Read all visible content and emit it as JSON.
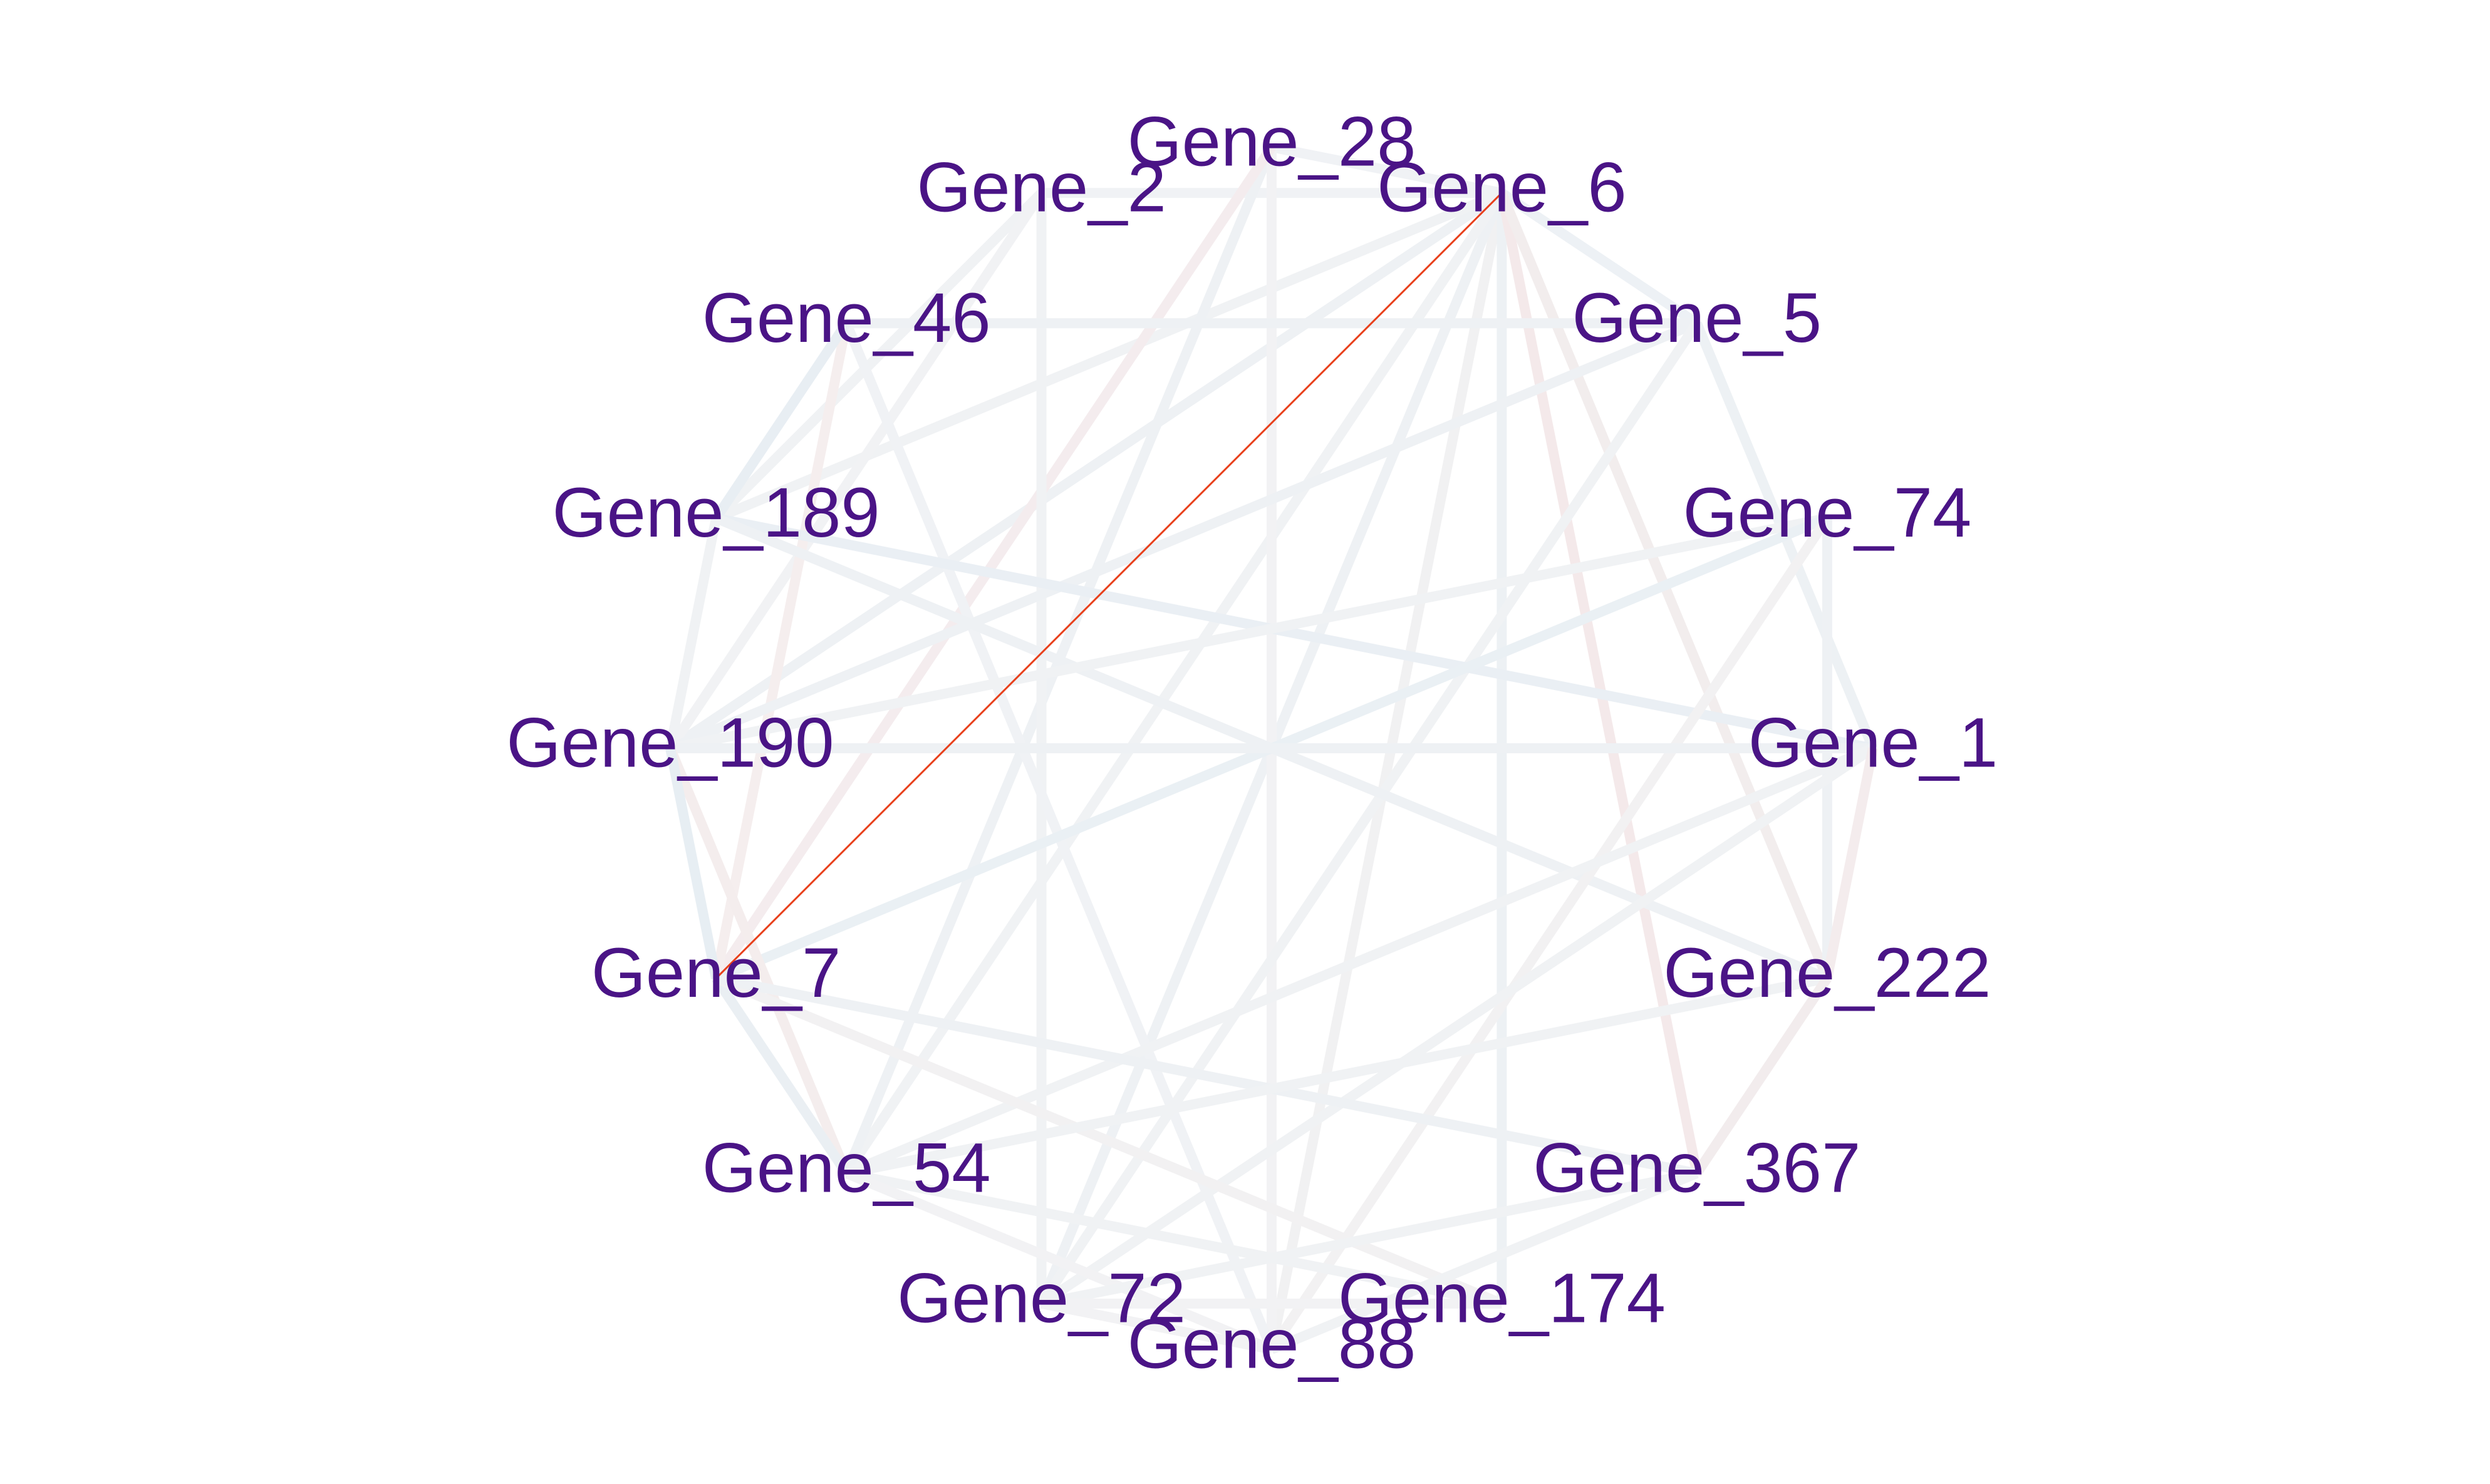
{
  "network": {
    "nodes": [
      {
        "id": "Gene_28",
        "label": "Gene_28"
      },
      {
        "id": "Gene_6",
        "label": "Gene_6"
      },
      {
        "id": "Gene_5",
        "label": "Gene_5"
      },
      {
        "id": "Gene_74",
        "label": "Gene_74"
      },
      {
        "id": "Gene_1",
        "label": "Gene_1"
      },
      {
        "id": "Gene_222",
        "label": "Gene_222"
      },
      {
        "id": "Gene_367",
        "label": "Gene_367"
      },
      {
        "id": "Gene_174",
        "label": "Gene_174"
      },
      {
        "id": "Gene_88",
        "label": "Gene_88"
      },
      {
        "id": "Gene_72",
        "label": "Gene_72"
      },
      {
        "id": "Gene_54",
        "label": "Gene_54"
      },
      {
        "id": "Gene_7",
        "label": "Gene_7"
      },
      {
        "id": "Gene_190",
        "label": "Gene_190"
      },
      {
        "id": "Gene_189",
        "label": "Gene_189"
      },
      {
        "id": "Gene_46",
        "label": "Gene_46"
      },
      {
        "id": "Gene_2",
        "label": "Gene_2"
      }
    ],
    "edges": [
      {
        "source": "Gene_6",
        "target": "Gene_7",
        "color": "#e8401c",
        "emphasis": "strong"
      },
      {
        "source": "Gene_6",
        "target": "Gene_28",
        "color": "#f0f2f5"
      },
      {
        "source": "Gene_6",
        "target": "Gene_2",
        "color": "#f0f2f5"
      },
      {
        "source": "Gene_6",
        "target": "Gene_5",
        "color": "#edf1f5"
      },
      {
        "source": "Gene_6",
        "target": "Gene_88",
        "color": "#f1f1f2"
      },
      {
        "source": "Gene_6",
        "target": "Gene_174",
        "color": "#edf1f4"
      },
      {
        "source": "Gene_6",
        "target": "Gene_72",
        "color": "#eef1f4"
      },
      {
        "source": "Gene_6",
        "target": "Gene_54",
        "color": "#f0f2f4"
      },
      {
        "source": "Gene_6",
        "target": "Gene_190",
        "color": "#eef1f4"
      },
      {
        "source": "Gene_6",
        "target": "Gene_367",
        "color": "#f4e9ea"
      },
      {
        "source": "Gene_6",
        "target": "Gene_222",
        "color": "#f2eded"
      },
      {
        "source": "Gene_6",
        "target": "Gene_189",
        "color": "#f0f2f4"
      },
      {
        "source": "Gene_28",
        "target": "Gene_54",
        "color": "#eef1f4"
      },
      {
        "source": "Gene_28",
        "target": "Gene_88",
        "color": "#f2f2f4"
      },
      {
        "source": "Gene_28",
        "target": "Gene_7",
        "color": "#f4ecee"
      },
      {
        "source": "Gene_2",
        "target": "Gene_72",
        "color": "#f0f2f4"
      },
      {
        "source": "Gene_2",
        "target": "Gene_189",
        "color": "#f0f2f4"
      },
      {
        "source": "Gene_2",
        "target": "Gene_190",
        "color": "#f1f2f4"
      },
      {
        "source": "Gene_46",
        "target": "Gene_7",
        "color": "#f5eeee"
      },
      {
        "source": "Gene_46",
        "target": "Gene_88",
        "color": "#f0f2f5"
      },
      {
        "source": "Gene_46",
        "target": "Gene_5",
        "color": "#eef1f4"
      },
      {
        "source": "Gene_46",
        "target": "Gene_189",
        "color": "#e8eef3"
      },
      {
        "source": "Gene_5",
        "target": "Gene_190",
        "color": "#eef1f4"
      },
      {
        "source": "Gene_5",
        "target": "Gene_72",
        "color": "#f0f2f4"
      },
      {
        "source": "Gene_5",
        "target": "Gene_1",
        "color": "#edf1f4"
      },
      {
        "source": "Gene_189",
        "target": "Gene_1",
        "color": "#eaeff4"
      },
      {
        "source": "Gene_189",
        "target": "Gene_222",
        "color": "#eef1f4"
      },
      {
        "source": "Gene_189",
        "target": "Gene_190",
        "color": "#f0f2f4"
      },
      {
        "source": "Gene_74",
        "target": "Gene_190",
        "color": "#f0f2f4"
      },
      {
        "source": "Gene_74",
        "target": "Gene_7",
        "color": "#eaf0f4"
      },
      {
        "source": "Gene_74",
        "target": "Gene_88",
        "color": "#f2f1f2"
      },
      {
        "source": "Gene_74",
        "target": "Gene_222",
        "color": "#eef1f4"
      },
      {
        "source": "Gene_190",
        "target": "Gene_1",
        "color": "#eef1f4"
      },
      {
        "source": "Gene_190",
        "target": "Gene_54",
        "color": "#f4eded"
      },
      {
        "source": "Gene_190",
        "target": "Gene_7",
        "color": "#e7eef3"
      },
      {
        "source": "Gene_1",
        "target": "Gene_54",
        "color": "#f0f2f4"
      },
      {
        "source": "Gene_1",
        "target": "Gene_72",
        "color": "#f0f2f4"
      },
      {
        "source": "Gene_1",
        "target": "Gene_222",
        "color": "#f4eced"
      },
      {
        "source": "Gene_7",
        "target": "Gene_54",
        "color": "#eaeff3"
      },
      {
        "source": "Gene_7",
        "target": "Gene_174",
        "color": "#f2f1f2"
      },
      {
        "source": "Gene_7",
        "target": "Gene_367",
        "color": "#eef1f4"
      },
      {
        "source": "Gene_222",
        "target": "Gene_54",
        "color": "#f0f2f4"
      },
      {
        "source": "Gene_222",
        "target": "Gene_367",
        "color": "#f2eced"
      },
      {
        "source": "Gene_54",
        "target": "Gene_174",
        "color": "#f0f2f4"
      },
      {
        "source": "Gene_54",
        "target": "Gene_88",
        "color": "#f2f2f4"
      },
      {
        "source": "Gene_367",
        "target": "Gene_72",
        "color": "#f0f2f4"
      },
      {
        "source": "Gene_367",
        "target": "Gene_88",
        "color": "#f0f2f4"
      },
      {
        "source": "Gene_174",
        "target": "Gene_72",
        "color": "#f2f2f4"
      },
      {
        "source": "Gene_72",
        "target": "Gene_88",
        "color": "#f2f2f4"
      }
    ]
  }
}
